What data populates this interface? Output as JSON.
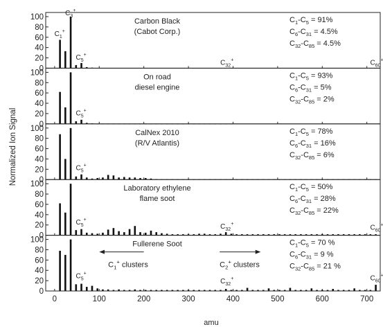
{
  "chart_data": {
    "type": "bar",
    "xlabel": "amu",
    "ylabel": "Normalized Ion Signal",
    "xlim": [
      -20,
      730
    ],
    "ylim": [
      0,
      100
    ],
    "x_ticks": [
      "0",
      "100",
      "200",
      "300",
      "400",
      "500",
      "600",
      "700"
    ],
    "y_ticks": [
      "0",
      "20",
      "40",
      "60",
      "80",
      "100"
    ],
    "panels": [
      {
        "title_lines": [
          "Carbon Black",
          "(Cabot Corp.)"
        ],
        "fractions": [
          {
            "prefix": "C",
            "s1": "1",
            "mid": "-C",
            "s2": "5",
            "value": " = 91%"
          },
          {
            "prefix": "C",
            "s1": "6",
            "mid": "-C",
            "s2": "31",
            "value": " = 4.5%"
          },
          {
            "prefix": "C",
            "s1": "32",
            "mid": "-C",
            "s2": "85",
            "value": " = 4.5%"
          }
        ],
        "peak_labels": [
          {
            "base": "C",
            "sub": "1",
            "sup": "+",
            "x": 12,
            "y": 60
          },
          {
            "base": "C",
            "sub": "3",
            "sup": "+",
            "x": 36,
            "y": 100
          },
          {
            "base": "C",
            "sub": "5",
            "sup": "+",
            "x": 60,
            "y": 14
          },
          {
            "base": "C",
            "sub": "32",
            "sup": "+",
            "x": 384,
            "y": 4
          },
          {
            "base": "C",
            "sub": "60",
            "sup": "+",
            "x": 720,
            "y": 4
          }
        ],
        "x": [
          12,
          24,
          36,
          48,
          60,
          72,
          84
        ],
        "values": [
          55,
          33,
          100,
          6,
          10,
          2,
          1
        ],
        "tail": {
          "from": 96,
          "to": 720,
          "step": 12,
          "value": 0.4
        }
      },
      {
        "title_lines": [
          "On road",
          "diesel engine"
        ],
        "fractions": [
          {
            "prefix": "C",
            "s1": "1",
            "mid": "-C",
            "s2": "5",
            "value": " = 93%"
          },
          {
            "prefix": "C",
            "s1": "6",
            "mid": "-C",
            "s2": "31",
            "value": " = 5%"
          },
          {
            "prefix": "C",
            "s1": "32",
            "mid": "-C",
            "s2": "85",
            "value": " = 2%"
          }
        ],
        "peak_labels": [
          {
            "base": "C",
            "sub": "5",
            "sup": "+",
            "x": 60,
            "y": 14
          }
        ],
        "x": [
          12,
          24,
          36,
          48,
          60,
          72,
          84
        ],
        "values": [
          62,
          32,
          100,
          5,
          8,
          2,
          1
        ],
        "tail": {
          "from": 96,
          "to": 400,
          "step": 12,
          "value": 0.3
        }
      },
      {
        "title_lines": [
          "CalNex 2010",
          "(R/V Atlantis)"
        ],
        "fractions": [
          {
            "prefix": "C",
            "s1": "1",
            "mid": "-C",
            "s2": "5",
            "value": " = 78%"
          },
          {
            "prefix": "C",
            "s1": "6",
            "mid": "-C",
            "s2": "31",
            "value": " = 16%"
          },
          {
            "prefix": "C",
            "s1": "32",
            "mid": "-C",
            "s2": "85",
            "value": " = 6%"
          }
        ],
        "peak_labels": [
          {
            "base": "C",
            "sub": "5",
            "sup": "+",
            "x": 60,
            "y": 16
          }
        ],
        "x": [
          12,
          24,
          36,
          48,
          60,
          72,
          84,
          96,
          108,
          120,
          132,
          144,
          156,
          168,
          180,
          192,
          204,
          216,
          228
        ],
        "values": [
          88,
          40,
          100,
          6,
          10,
          4,
          2,
          3,
          4,
          9,
          8,
          4,
          5,
          4,
          4,
          3,
          3,
          2,
          1
        ],
        "tail": {
          "from": 240,
          "to": 720,
          "step": 12,
          "value": 0.5
        }
      },
      {
        "title_lines": [
          "Laboratory ethylene",
          "flame soot"
        ],
        "fractions": [
          {
            "prefix": "C",
            "s1": "1",
            "mid": "-C",
            "s2": "5",
            "value": " = 50%"
          },
          {
            "prefix": "C",
            "s1": "6",
            "mid": "-C",
            "s2": "31",
            "value": " = 28%"
          },
          {
            "prefix": "C",
            "s1": "32",
            "mid": "-C",
            "s2": "85",
            "value": " = 22%"
          }
        ],
        "peak_labels": [
          {
            "base": "C",
            "sub": "5",
            "sup": "+",
            "x": 60,
            "y": 18
          },
          {
            "base": "C",
            "sub": "32",
            "sup": "+",
            "x": 384,
            "y": 10
          },
          {
            "base": "C",
            "sub": "60",
            "sup": "+",
            "x": 720,
            "y": 8
          }
        ],
        "x": [
          12,
          24,
          36,
          48,
          60,
          72,
          84,
          96,
          108,
          120,
          132,
          144,
          156,
          168,
          180,
          192,
          204,
          216,
          228,
          240,
          252,
          264,
          276,
          288,
          300,
          312,
          324,
          336,
          348,
          360,
          372,
          384,
          396,
          408
        ],
        "values": [
          62,
          44,
          100,
          10,
          12,
          5,
          4,
          3,
          5,
          11,
          14,
          8,
          6,
          12,
          18,
          6,
          5,
          9,
          6,
          4,
          3,
          2,
          2,
          2,
          2,
          2,
          3,
          3,
          2,
          2,
          3,
          6,
          3,
          2
        ],
        "tail": {
          "from": 420,
          "to": 720,
          "step": 12,
          "value": 2
        }
      },
      {
        "title_lines": [
          "Fullerene Soot"
        ],
        "fractions": [
          {
            "prefix": "C",
            "s1": "1",
            "mid": "-C",
            "s2": "5",
            "value": " = 70 %"
          },
          {
            "prefix": "C",
            "s1": "6",
            "mid": "-C",
            "s2": "31",
            "value": " = 9 %"
          },
          {
            "prefix": "C",
            "s1": "32",
            "mid": "-C",
            "s2": "85",
            "value": " = 21 %"
          }
        ],
        "peak_labels": [
          {
            "base": "C",
            "sub": "5",
            "sup": "+",
            "x": 60,
            "y": 22
          },
          {
            "base": "C",
            "sub": "32",
            "sup": "+",
            "x": 384,
            "y": 12
          },
          {
            "base": "C",
            "sub": "60",
            "sup": "+",
            "x": 720,
            "y": 18
          }
        ],
        "annotations": [
          {
            "base": "C",
            "sub": "1",
            "sup": "+",
            "text": " clusters",
            "arrow": "left"
          },
          {
            "base": "C",
            "sub": "2",
            "sup": "+",
            "text": " clusters",
            "arrow": "right"
          }
        ],
        "x": [
          12,
          24,
          36,
          48,
          60,
          72,
          84,
          96,
          108,
          120,
          132,
          144,
          156,
          168,
          180,
          192,
          204,
          216,
          228,
          240,
          252,
          264,
          276,
          288,
          300,
          312,
          324,
          336,
          348,
          360,
          372,
          384,
          396,
          408,
          420,
          432,
          444,
          456,
          468,
          480,
          492,
          504,
          516,
          528,
          540,
          552,
          564,
          576,
          588,
          600,
          612,
          624,
          636,
          648,
          660,
          672,
          684,
          696,
          708,
          720
        ],
        "values": [
          78,
          70,
          100,
          13,
          14,
          8,
          10,
          5,
          3,
          3,
          2,
          3,
          2,
          2,
          3,
          2,
          2,
          2,
          2,
          2,
          2,
          2,
          2,
          2,
          2,
          2,
          2,
          2,
          2,
          2,
          2,
          4,
          2,
          2,
          2,
          6,
          2,
          2,
          2,
          5,
          2,
          2,
          2,
          6,
          2,
          2,
          2,
          5,
          2,
          2,
          2,
          4,
          2,
          2,
          2,
          5,
          2,
          2,
          2,
          12
        ]
      }
    ]
  }
}
